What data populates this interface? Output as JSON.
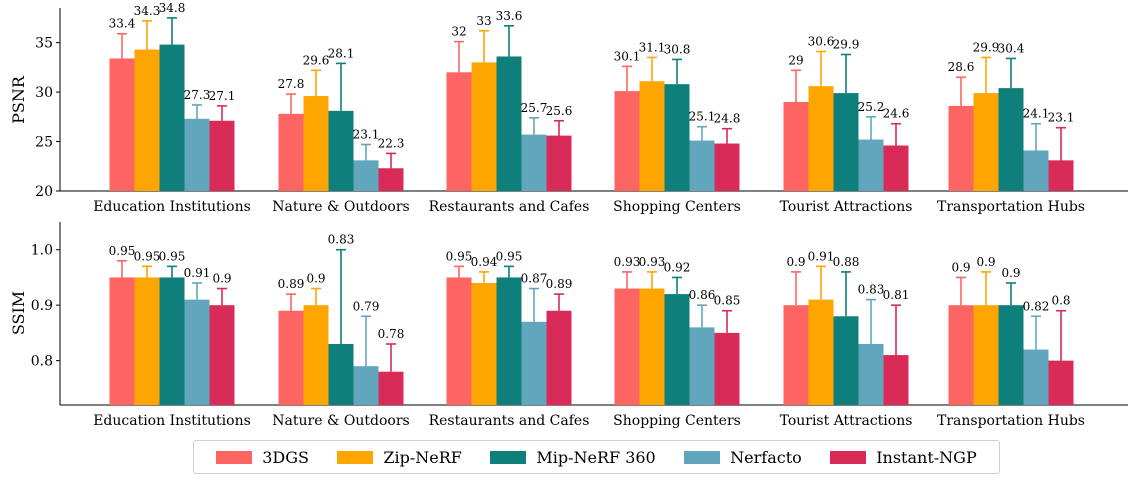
{
  "chart_data": [
    {
      "type": "bar",
      "ylabel": "PSNR",
      "ylim": [
        20,
        38.5
      ],
      "yticks": [
        20,
        25,
        30,
        35
      ],
      "categories": [
        "Education Institutions",
        "Nature & Outdoors",
        "Restaurants and Cafes",
        "Shopping Centers",
        "Tourist Attractions",
        "Transportation Hubs"
      ],
      "series": [
        {
          "name": "3DGS",
          "values": [
            33.4,
            27.8,
            32,
            30.1,
            29,
            28.6
          ],
          "errors": [
            2.5,
            2.0,
            3.1,
            2.5,
            3.2,
            2.9
          ],
          "labels": [
            "33.4",
            "27.8",
            "32",
            "30.1",
            "29",
            "28.6"
          ]
        },
        {
          "name": "Zip-NeRF",
          "values": [
            34.3,
            29.6,
            33,
            31.1,
            30.6,
            29.9
          ],
          "errors": [
            2.9,
            2.6,
            3.2,
            2.4,
            3.5,
            3.6
          ],
          "labels": [
            "34.3",
            "29.6",
            "33",
            "31.1",
            "30.6",
            "29.9"
          ]
        },
        {
          "name": "Mip-NeRF 360",
          "values": [
            34.8,
            28.1,
            33.6,
            30.8,
            29.9,
            30.4
          ],
          "errors": [
            2.7,
            4.8,
            3.1,
            2.5,
            3.9,
            3.0
          ],
          "labels": [
            "34.8",
            "28.1",
            "33.6",
            "30.8",
            "29.9",
            "30.4"
          ]
        },
        {
          "name": "Nerfacto",
          "values": [
            27.3,
            23.1,
            25.7,
            25.1,
            25.2,
            24.1
          ],
          "errors": [
            1.4,
            1.6,
            1.7,
            1.4,
            2.3,
            2.7
          ],
          "labels": [
            "27.3",
            "23.1",
            "25.7",
            "25.1",
            "25.2",
            "24.1"
          ]
        },
        {
          "name": "Instant-NGP",
          "values": [
            27.1,
            22.3,
            25.6,
            24.8,
            24.6,
            23.1
          ],
          "errors": [
            1.5,
            1.5,
            1.5,
            1.5,
            2.2,
            3.3
          ],
          "labels": [
            "27.1",
            "22.3",
            "25.6",
            "24.8",
            "24.6",
            "23.1"
          ]
        }
      ]
    },
    {
      "type": "bar",
      "ylabel": "SSIM",
      "ylim": [
        0.72,
        1.05
      ],
      "yticks": [
        0.8,
        0.9,
        1.0
      ],
      "ytick_labels": [
        "0.8",
        "0.9",
        "1.0"
      ],
      "categories": [
        "Education Institutions",
        "Nature & Outdoors",
        "Restaurants and Cafes",
        "Shopping Centers",
        "Tourist Attractions",
        "Transportation Hubs"
      ],
      "series": [
        {
          "name": "3DGS",
          "values": [
            0.95,
            0.89,
            0.95,
            0.93,
            0.9,
            0.9
          ],
          "errors": [
            0.03,
            0.03,
            0.02,
            0.03,
            0.06,
            0.05
          ],
          "labels": [
            "0.95",
            "0.89",
            "0.95",
            "0.93",
            "0.9",
            "0.9"
          ]
        },
        {
          "name": "Zip-NeRF",
          "values": [
            0.95,
            0.9,
            0.94,
            0.93,
            0.91,
            0.9
          ],
          "errors": [
            0.02,
            0.03,
            0.02,
            0.03,
            0.06,
            0.06
          ],
          "labels": [
            "0.95",
            "0.9",
            "0.94",
            "0.93",
            "0.91",
            "0.9"
          ]
        },
        {
          "name": "Mip-NeRF 360",
          "values": [
            0.95,
            0.83,
            0.95,
            0.92,
            0.88,
            0.9
          ],
          "errors": [
            0.02,
            0.17,
            0.02,
            0.03,
            0.08,
            0.04
          ],
          "labels": [
            "0.95",
            "0.83",
            "0.95",
            "0.92",
            "0.88",
            "0.9"
          ]
        },
        {
          "name": "Nerfacto",
          "values": [
            0.91,
            0.79,
            0.87,
            0.86,
            0.83,
            0.82
          ],
          "errors": [
            0.03,
            0.09,
            0.06,
            0.04,
            0.08,
            0.06
          ],
          "labels": [
            "0.91",
            "0.79",
            "0.87",
            "0.86",
            "0.83",
            "0.82"
          ]
        },
        {
          "name": "Instant-NGP",
          "values": [
            0.9,
            0.78,
            0.89,
            0.85,
            0.81,
            0.8
          ],
          "errors": [
            0.03,
            0.05,
            0.03,
            0.04,
            0.09,
            0.09
          ],
          "labels": [
            "0.9",
            "0.78",
            "0.89",
            "0.85",
            "0.81",
            "0.8"
          ]
        }
      ]
    }
  ],
  "colors": {
    "3DGS": "#fd6562",
    "Zip-NeRF": "#ffa500",
    "Mip-NeRF 360": "#0e7f7a",
    "Nerfacto": "#62a6bd",
    "Instant-NGP": "#d82b57"
  },
  "legend": {
    "items": [
      {
        "label": "3DGS",
        "color": "#fd6562"
      },
      {
        "label": "Zip-NeRF",
        "color": "#ffa500"
      },
      {
        "label": "Mip-NeRF 360",
        "color": "#0e7f7a"
      },
      {
        "label": "Nerfacto",
        "color": "#62a6bd"
      },
      {
        "label": "Instant-NGP",
        "color": "#d82b57"
      }
    ]
  }
}
